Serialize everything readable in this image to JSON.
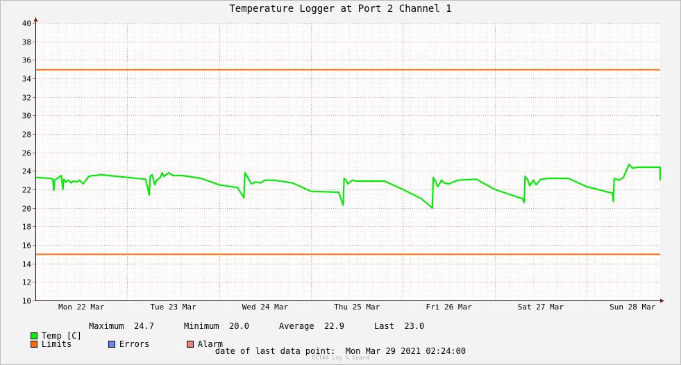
{
  "chart_data": {
    "type": "line",
    "title": "Temperature Logger at Port 2 Channel 1",
    "ylim": [
      10,
      40
    ],
    "y_ticks": [
      "10",
      "12",
      "14",
      "16",
      "18",
      "20",
      "22",
      "24",
      "26",
      "28",
      "30",
      "32",
      "34",
      "36",
      "38",
      "40"
    ],
    "x_ticks": [
      "Mon 22 Mar",
      "Tue 23 Mar",
      "Wed 24 Mar",
      "Thu 25 Mar",
      "Fri 26 Mar",
      "Sat 27 Mar",
      "Sun 28 Mar"
    ],
    "grid": true,
    "legend_placement": "bottom",
    "limits": {
      "upper": 35,
      "lower": 15
    },
    "series": [
      {
        "name": "Temp [C]",
        "color": "#00ee00",
        "x": [
          0,
          0.16,
          0.19,
          0.2,
          0.21,
          0.28,
          0.3,
          0.31,
          0.33,
          0.36,
          0.39,
          0.41,
          0.45,
          0.48,
          0.52,
          0.55,
          0.58,
          0.62,
          0.66,
          0.7,
          0.8,
          1.0,
          1.2,
          1.24,
          1.25,
          1.27,
          1.3,
          1.32,
          1.36,
          1.38,
          1.4,
          1.45,
          1.5,
          1.6,
          1.8,
          2.0,
          2.2,
          2.27,
          2.28,
          2.3,
          2.35,
          2.4,
          2.45,
          2.5,
          2.55,
          2.6,
          2.8,
          3.0,
          3.3,
          3.35,
          3.36,
          3.38,
          3.4,
          3.45,
          3.5,
          3.6,
          3.8,
          4.0,
          4.2,
          4.32,
          4.33,
          4.35,
          4.38,
          4.42,
          4.45,
          4.5,
          4.6,
          4.8,
          5.0,
          5.3,
          5.32,
          5.33,
          5.36,
          5.38,
          5.42,
          5.45,
          5.5,
          5.6,
          5.8,
          6.0,
          6.28,
          6.29,
          6.3,
          6.35,
          6.4,
          6.43,
          6.46,
          6.5,
          6.55,
          6.6,
          6.8,
          6.9,
          7.0
        ],
        "values": [
          23.3,
          23.2,
          23.1,
          21.9,
          23.0,
          23.5,
          22.0,
          23.1,
          22.8,
          23.0,
          22.7,
          22.9,
          22.8,
          23.0,
          22.6,
          23.0,
          23.4,
          23.5,
          23.5,
          23.6,
          23.5,
          23.3,
          23.1,
          21.4,
          23.4,
          23.6,
          22.5,
          23.0,
          23.3,
          23.8,
          23.4,
          23.8,
          23.5,
          23.5,
          23.2,
          22.5,
          22.2,
          21.1,
          23.8,
          23.5,
          22.6,
          22.8,
          22.7,
          23.0,
          23.0,
          23.0,
          22.7,
          21.8,
          21.7,
          20.3,
          23.2,
          23.0,
          22.6,
          23.0,
          22.9,
          22.9,
          22.9,
          22.0,
          21.0,
          20.0,
          23.3,
          23.0,
          22.3,
          23.0,
          22.7,
          22.6,
          23.0,
          23.1,
          22.0,
          21.0,
          20.6,
          23.4,
          23.0,
          22.4,
          23.0,
          22.5,
          23.1,
          23.2,
          23.2,
          22.3,
          21.6,
          20.7,
          23.2,
          23.0,
          23.3,
          24.0,
          24.7,
          24.3,
          24.4,
          24.4,
          24.4,
          24.4,
          23.0
        ]
      }
    ]
  },
  "legend": {
    "temp": {
      "label": "Temp [C]",
      "color": "#00ee00"
    },
    "limits": {
      "label": "Limits",
      "color": "#ff6600"
    },
    "errors": {
      "label": "Errors",
      "color": "#6b82ff"
    },
    "alarm": {
      "label": "Alarm",
      "color": "#f08080"
    }
  },
  "stats": {
    "maximum_label": "Maximum",
    "maximum_value": "24.7",
    "minimum_label": "Minimum",
    "minimum_value": "20.0",
    "average_label": "Average",
    "average_value": "22.9",
    "last_label": "Last",
    "last_value": "23.0"
  },
  "footer": {
    "last_point_label": "date of last data point:",
    "last_point_value": "Mon Mar 29 2021 02:24:00",
    "watermark": "OCTA4 Log & Guard"
  }
}
